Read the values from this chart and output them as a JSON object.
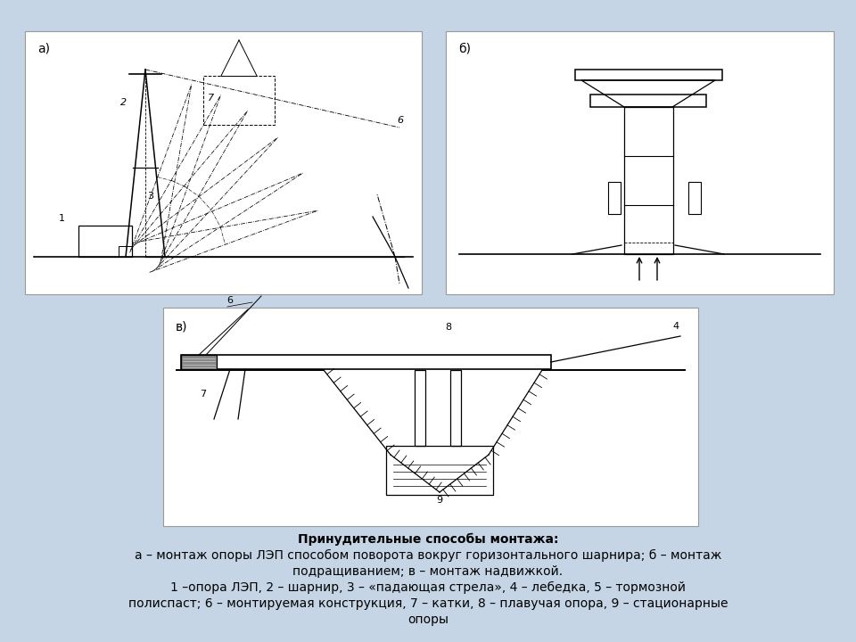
{
  "bg_color": "#c5d5e5",
  "white": "#ffffff",
  "black": "#000000",
  "gray_light": "#e8ecf0",
  "title_line1": "Принудительные способы монтажа:",
  "title_line2": "а – монтаж опоры ЛЭП способом поворота вокруг горизонтального шарнира; б – монтаж",
  "title_line3": "подращиванием; в – монтаж надвижкой.",
  "title_line4": "1 –опора ЛЭП, 2 – шарнир, 3 – «падающая стрела», 4 – лебедка, 5 – тормозной",
  "title_line5": "полиспаст; 6 – монтируемая конструкция, 7 – катки, 8 – плавучая опора, 9 – стационарные",
  "title_line6": "опоры",
  "label_a": "а)",
  "label_b": "б)",
  "label_v": "в)"
}
